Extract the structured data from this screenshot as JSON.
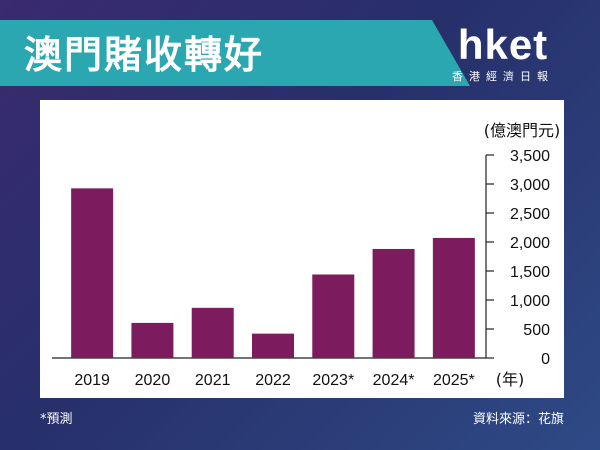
{
  "header": {
    "title": "澳門賭收轉好",
    "logo_main": "hket",
    "logo_sub": "香港經濟日報"
  },
  "colors": {
    "bar": "#7c1c5e",
    "title_band": "#2aa7b0",
    "background": "#2b3372"
  },
  "chart_data": {
    "type": "bar",
    "title": "",
    "xlabel": "(年)",
    "ylabel": "(億澳門元)",
    "categories": [
      "2019",
      "2020",
      "2021",
      "2022",
      "2023*",
      "2024*",
      "2025*"
    ],
    "values": [
      2925,
      605,
      865,
      420,
      1440,
      1880,
      2070
    ],
    "ylim": [
      0,
      3500
    ],
    "yticks": [
      0,
      500,
      1000,
      1500,
      2000,
      2500,
      3000,
      3500
    ],
    "ytick_labels": [
      "0",
      "500",
      "1,000",
      "1,500",
      "2,000",
      "2,500",
      "3,000",
      "3,500"
    ],
    "y_axis_side": "right",
    "grid": false,
    "legend": "none"
  },
  "footer": {
    "note": "*預測",
    "source": "資料來源：花旗"
  }
}
